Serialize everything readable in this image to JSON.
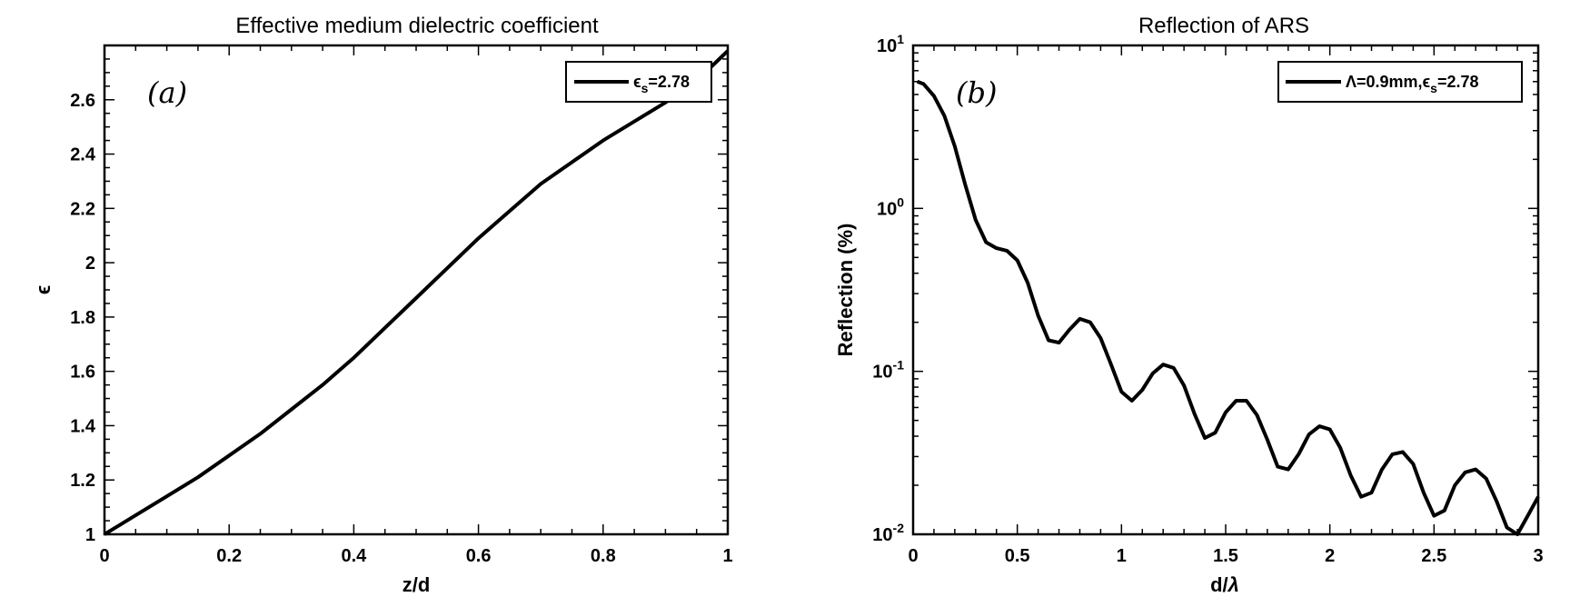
{
  "chart_data": [
    {
      "type": "line",
      "title": "Effective medium dielectric coefficient",
      "xlabel": "z/d",
      "ylabel": "ϵ",
      "xlim": [
        0,
        1
      ],
      "ylim": [
        1,
        2.8
      ],
      "xticks": [
        "0",
        "0.2",
        "0.4",
        "0.6",
        "0.8",
        "1"
      ],
      "yticks": [
        "1",
        "1.2",
        "1.4",
        "1.6",
        "1.8",
        "2",
        "2.2",
        "2.4",
        "2.6"
      ],
      "grid": false,
      "panel_label": "(a)",
      "legend": {
        "position": "top-right",
        "entries": [
          "ϵs=2.78"
        ]
      },
      "series": [
        {
          "name": "ϵs=2.78",
          "color": "#000000",
          "x": [
            0,
            0.05,
            0.1,
            0.15,
            0.2,
            0.25,
            0.3,
            0.35,
            0.4,
            0.45,
            0.5,
            0.55,
            0.6,
            0.65,
            0.7,
            0.75,
            0.8,
            0.85,
            0.9,
            0.95,
            1.0
          ],
          "y": [
            1.0,
            1.07,
            1.14,
            1.21,
            1.29,
            1.37,
            1.46,
            1.55,
            1.65,
            1.76,
            1.87,
            1.98,
            2.09,
            2.19,
            2.29,
            2.37,
            2.45,
            2.52,
            2.59,
            2.67,
            2.78
          ]
        }
      ]
    },
    {
      "type": "line",
      "title": "Reflection of ARS",
      "xlabel": "d/λ",
      "ylabel": "Reflection (%)",
      "xlim": [
        0,
        3
      ],
      "ylim": [
        0.01,
        10
      ],
      "yscale": "log",
      "xticks": [
        "0",
        "0.5",
        "1",
        "1.5",
        "2",
        "2.5",
        "3"
      ],
      "yticks": [
        {
          "base": "10",
          "exp": "-2"
        },
        {
          "base": "10",
          "exp": "-1"
        },
        {
          "base": "10",
          "exp": "0"
        },
        {
          "base": "10",
          "exp": "1"
        }
      ],
      "grid": false,
      "panel_label": "(b)",
      "legend": {
        "position": "top-right",
        "entries": [
          "Λ=0.9mm,ϵs=2.78"
        ]
      },
      "series": [
        {
          "name": "Λ=0.9mm,ϵs=2.78",
          "color": "#000000",
          "x": [
            0.02,
            0.05,
            0.1,
            0.15,
            0.2,
            0.25,
            0.3,
            0.35,
            0.4,
            0.45,
            0.5,
            0.55,
            0.6,
            0.65,
            0.7,
            0.75,
            0.8,
            0.85,
            0.9,
            0.95,
            1.0,
            1.05,
            1.1,
            1.15,
            1.2,
            1.25,
            1.3,
            1.35,
            1.4,
            1.45,
            1.5,
            1.55,
            1.6,
            1.65,
            1.7,
            1.75,
            1.8,
            1.85,
            1.9,
            1.95,
            2.0,
            2.05,
            2.1,
            2.15,
            2.2,
            2.25,
            2.3,
            2.35,
            2.4,
            2.45,
            2.5,
            2.55,
            2.6,
            2.65,
            2.7,
            2.75,
            2.8,
            2.85,
            2.9,
            2.95,
            3.0
          ],
          "y": [
            6.0,
            5.8,
            4.9,
            3.7,
            2.4,
            1.4,
            0.85,
            0.62,
            0.57,
            0.55,
            0.48,
            0.35,
            0.22,
            0.155,
            0.15,
            0.18,
            0.21,
            0.2,
            0.16,
            0.11,
            0.075,
            0.066,
            0.077,
            0.097,
            0.11,
            0.105,
            0.082,
            0.055,
            0.039,
            0.042,
            0.056,
            0.066,
            0.066,
            0.054,
            0.038,
            0.026,
            0.025,
            0.031,
            0.041,
            0.046,
            0.044,
            0.034,
            0.023,
            0.017,
            0.018,
            0.025,
            0.031,
            0.032,
            0.027,
            0.018,
            0.013,
            0.014,
            0.02,
            0.024,
            0.025,
            0.022,
            0.016,
            0.011,
            0.01,
            0.013,
            0.017
          ]
        }
      ]
    }
  ]
}
